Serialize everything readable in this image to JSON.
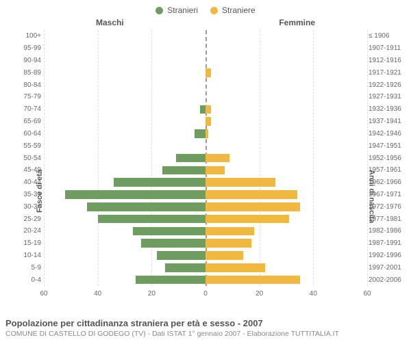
{
  "legend": {
    "male": {
      "label": "Stranieri",
      "color": "#6f9d5f"
    },
    "female": {
      "label": "Straniere",
      "color": "#f1b840"
    }
  },
  "headers": {
    "left": "Maschi",
    "right": "Femmine"
  },
  "axis": {
    "left_title": "Fasce di età",
    "right_title": "Anni di nascita",
    "x_max": 60,
    "x_ticks": [
      60,
      40,
      20,
      0,
      20,
      40,
      60
    ],
    "grid_color": "#dddddd"
  },
  "chart": {
    "type": "population-pyramid",
    "rows": [
      {
        "age": "100+",
        "birth": "≤ 1906",
        "m": 0,
        "f": 0
      },
      {
        "age": "95-99",
        "birth": "1907-1911",
        "m": 0,
        "f": 0
      },
      {
        "age": "90-94",
        "birth": "1912-1916",
        "m": 0,
        "f": 0
      },
      {
        "age": "85-89",
        "birth": "1917-1921",
        "m": 0,
        "f": 2
      },
      {
        "age": "80-84",
        "birth": "1922-1926",
        "m": 0,
        "f": 0
      },
      {
        "age": "75-79",
        "birth": "1927-1931",
        "m": 0,
        "f": 0
      },
      {
        "age": "70-74",
        "birth": "1932-1936",
        "m": 2,
        "f": 2
      },
      {
        "age": "65-69",
        "birth": "1937-1941",
        "m": 0,
        "f": 2
      },
      {
        "age": "60-64",
        "birth": "1942-1946",
        "m": 4,
        "f": 1
      },
      {
        "age": "55-59",
        "birth": "1947-1951",
        "m": 0,
        "f": 0
      },
      {
        "age": "50-54",
        "birth": "1952-1956",
        "m": 11,
        "f": 9
      },
      {
        "age": "45-49",
        "birth": "1957-1961",
        "m": 16,
        "f": 7
      },
      {
        "age": "40-44",
        "birth": "1962-1966",
        "m": 34,
        "f": 26
      },
      {
        "age": "35-39",
        "birth": "1967-1971",
        "m": 52,
        "f": 34
      },
      {
        "age": "30-34",
        "birth": "1972-1976",
        "m": 44,
        "f": 35
      },
      {
        "age": "25-29",
        "birth": "1977-1981",
        "m": 40,
        "f": 31
      },
      {
        "age": "20-24",
        "birth": "1982-1986",
        "m": 27,
        "f": 18
      },
      {
        "age": "15-19",
        "birth": "1987-1991",
        "m": 24,
        "f": 17
      },
      {
        "age": "10-14",
        "birth": "1992-1996",
        "m": 18,
        "f": 14
      },
      {
        "age": "5-9",
        "birth": "1997-2001",
        "m": 15,
        "f": 22
      },
      {
        "age": "0-4",
        "birth": "2002-2006",
        "m": 26,
        "f": 35
      }
    ]
  },
  "caption": {
    "title": "Popolazione per cittadinanza straniera per età e sesso - 2007",
    "subtitle": "COMUNE DI CASTELLO DI GODEGO (TV) - Dati ISTAT 1° gennaio 2007 - Elaborazione TUTTITALIA.IT"
  },
  "colors": {
    "background": "#ffffff",
    "text": "#555555",
    "text_muted": "#888888"
  }
}
